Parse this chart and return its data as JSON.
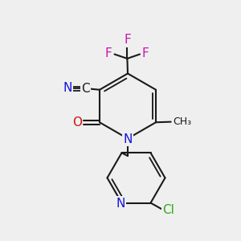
{
  "bg_color": "#efefef",
  "bond_color": "#1a1a1a",
  "bond_lw": 1.5,
  "atom_colors": {
    "N": "#1515dd",
    "O": "#cc1515",
    "F": "#cc15aa",
    "Cl": "#30aa15",
    "C": "#1a1a1a"
  }
}
